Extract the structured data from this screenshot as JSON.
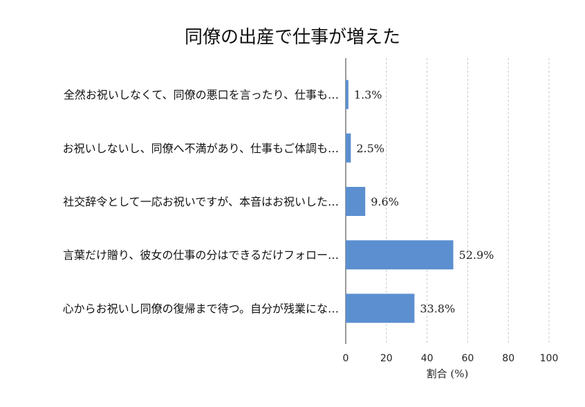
{
  "chart_data": {
    "type": "bar",
    "orientation": "horizontal",
    "title": "同僚の出産で仕事が増えた",
    "categories": [
      "全然お祝いしなくて、同僚の悪口を言ったり、仕事も…",
      "お祝いしないし、同僚へ不満があり、仕事もご体調も…",
      "社交辞令として一応お祝いですが、本音はお祝いした…",
      "言葉だけ贈り、彼女の仕事の分はできるだけフォロー…",
      "心からお祝いし同僚の復帰まで待つ。自分が残業にな…"
    ],
    "values": [
      1.3,
      2.5,
      9.6,
      52.9,
      33.8
    ],
    "value_labels": [
      "1.3%",
      "2.5%",
      "9.6%",
      "52.9%",
      "33.8%"
    ],
    "xlabel": "割合 (%)",
    "ylabel": "",
    "xlim": [
      0,
      100
    ],
    "xticks": [
      0,
      20,
      40,
      60,
      80,
      100
    ],
    "grid": true,
    "bar_color": "#5b8fd0"
  }
}
